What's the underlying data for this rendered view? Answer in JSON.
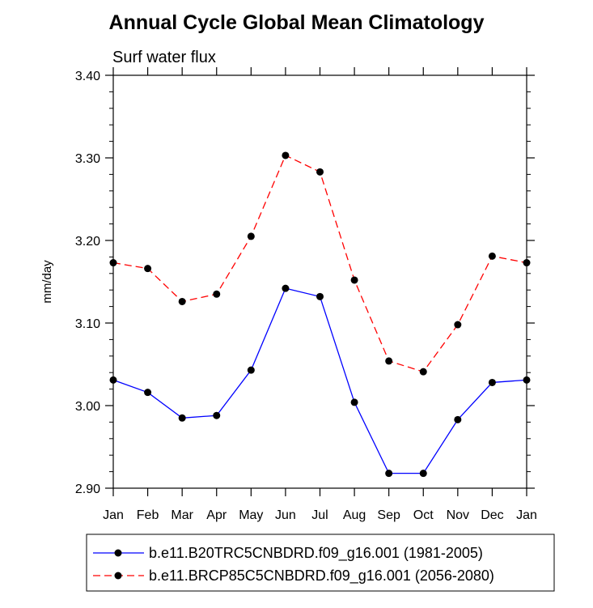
{
  "chart_data": {
    "type": "line",
    "title": "Annual Cycle Global Mean Climatology",
    "subtitle": "Surf water flux",
    "xlabel": "",
    "ylabel": "mm/day",
    "categories": [
      "Jan",
      "Feb",
      "Mar",
      "Apr",
      "May",
      "Jun",
      "Jul",
      "Aug",
      "Sep",
      "Oct",
      "Nov",
      "Dec",
      "Jan"
    ],
    "ylim": [
      2.9,
      3.4
    ],
    "yticks": [
      "3.40",
      "3.30",
      "3.20",
      "3.10",
      "3.00",
      "2.90"
    ],
    "ytick_values": [
      3.4,
      3.3,
      3.2,
      3.1,
      3.0,
      2.9
    ],
    "series": [
      {
        "name": "b.e11.B20TRC5CNBDRD.f09_g16.001 (1981-2005)",
        "color": "#0000ff",
        "dash": "solid",
        "values": [
          3.031,
          3.016,
          2.985,
          2.988,
          3.043,
          3.142,
          3.132,
          3.004,
          2.918,
          2.918,
          2.983,
          3.028,
          3.031
        ]
      },
      {
        "name": "b.e11.BRCP85C5CNBDRD.f09_g16.001 (2056-2080)",
        "color": "#ff0000",
        "dash": "dashed",
        "values": [
          3.173,
          3.166,
          3.126,
          3.135,
          3.205,
          3.303,
          3.283,
          3.152,
          3.054,
          3.041,
          3.098,
          3.181,
          3.173
        ]
      }
    ],
    "legend_position": "bottom"
  }
}
